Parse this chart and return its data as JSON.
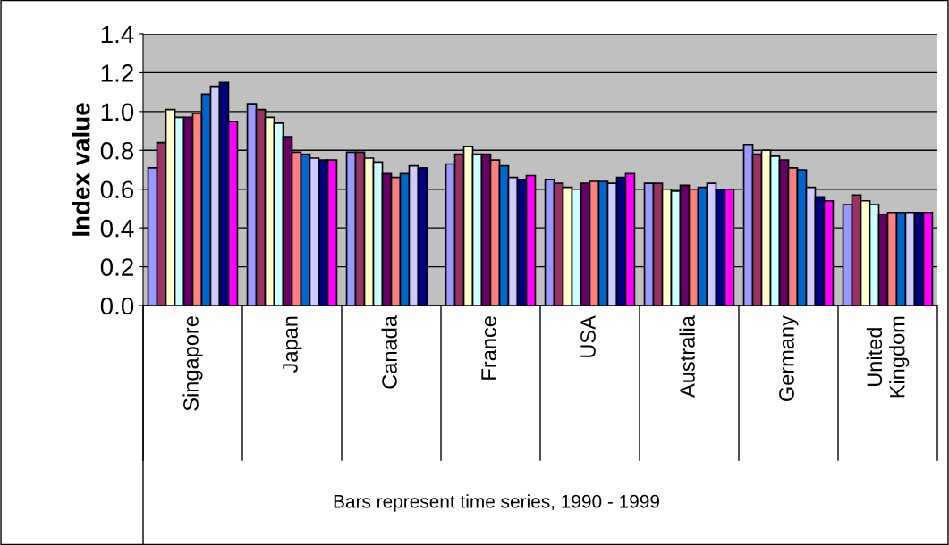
{
  "chart_data": {
    "type": "bar",
    "ylabel": "Index value",
    "xlabel": "Bars represent time series, 1990 - 1999",
    "categories": [
      "Singapore",
      "Japan",
      "Canada",
      "France",
      "USA",
      "Australia",
      "Germany",
      "United\nKingdom"
    ],
    "series": [
      {
        "color": "#9999ff",
        "values": [
          0.71,
          1.04,
          0.79,
          0.73,
          0.65,
          0.63,
          0.83,
          0.52
        ]
      },
      {
        "color": "#993366",
        "values": [
          0.84,
          1.01,
          0.79,
          0.78,
          0.63,
          0.63,
          0.78,
          0.57
        ]
      },
      {
        "color": "#ffffcc",
        "values": [
          1.01,
          0.97,
          0.76,
          0.82,
          0.61,
          0.6,
          0.8,
          0.54
        ]
      },
      {
        "color": "#ccffff",
        "values": [
          0.97,
          0.94,
          0.74,
          0.78,
          0.6,
          0.59,
          0.77,
          0.52
        ]
      },
      {
        "color": "#660066",
        "values": [
          0.97,
          0.87,
          0.68,
          0.78,
          0.63,
          0.62,
          0.75,
          0.47
        ]
      },
      {
        "color": "#ff8080",
        "values": [
          0.99,
          0.79,
          0.66,
          0.75,
          0.64,
          0.6,
          0.71,
          0.48
        ]
      },
      {
        "color": "#0066cc",
        "values": [
          1.09,
          0.78,
          0.68,
          0.72,
          0.64,
          0.61,
          0.7,
          0.48
        ]
      },
      {
        "color": "#ccccff",
        "values": [
          1.13,
          0.76,
          0.72,
          0.66,
          0.63,
          0.63,
          0.61,
          0.48
        ]
      },
      {
        "color": "#000080",
        "values": [
          1.15,
          0.75,
          0.71,
          0.65,
          0.66,
          0.6,
          0.56,
          0.48
        ]
      },
      {
        "color": "#ff00ff",
        "values": [
          0.95,
          0.75,
          null,
          0.67,
          0.68,
          0.6,
          0.54,
          0.48
        ]
      }
    ],
    "ylim": [
      0,
      1.4
    ],
    "yticks": [
      {
        "value": 0,
        "label": "0.0"
      },
      {
        "value": 0.2,
        "label": "0.2"
      },
      {
        "value": 0.4,
        "label": "0.4"
      },
      {
        "value": 0.6,
        "label": "0.6"
      },
      {
        "value": 0.8,
        "label": "0.8"
      },
      {
        "value": 1.0,
        "label": "1.0"
      },
      {
        "value": 1.2,
        "label": "1.2"
      },
      {
        "value": 1.4,
        "label": "1.4"
      }
    ],
    "grid": "y"
  }
}
